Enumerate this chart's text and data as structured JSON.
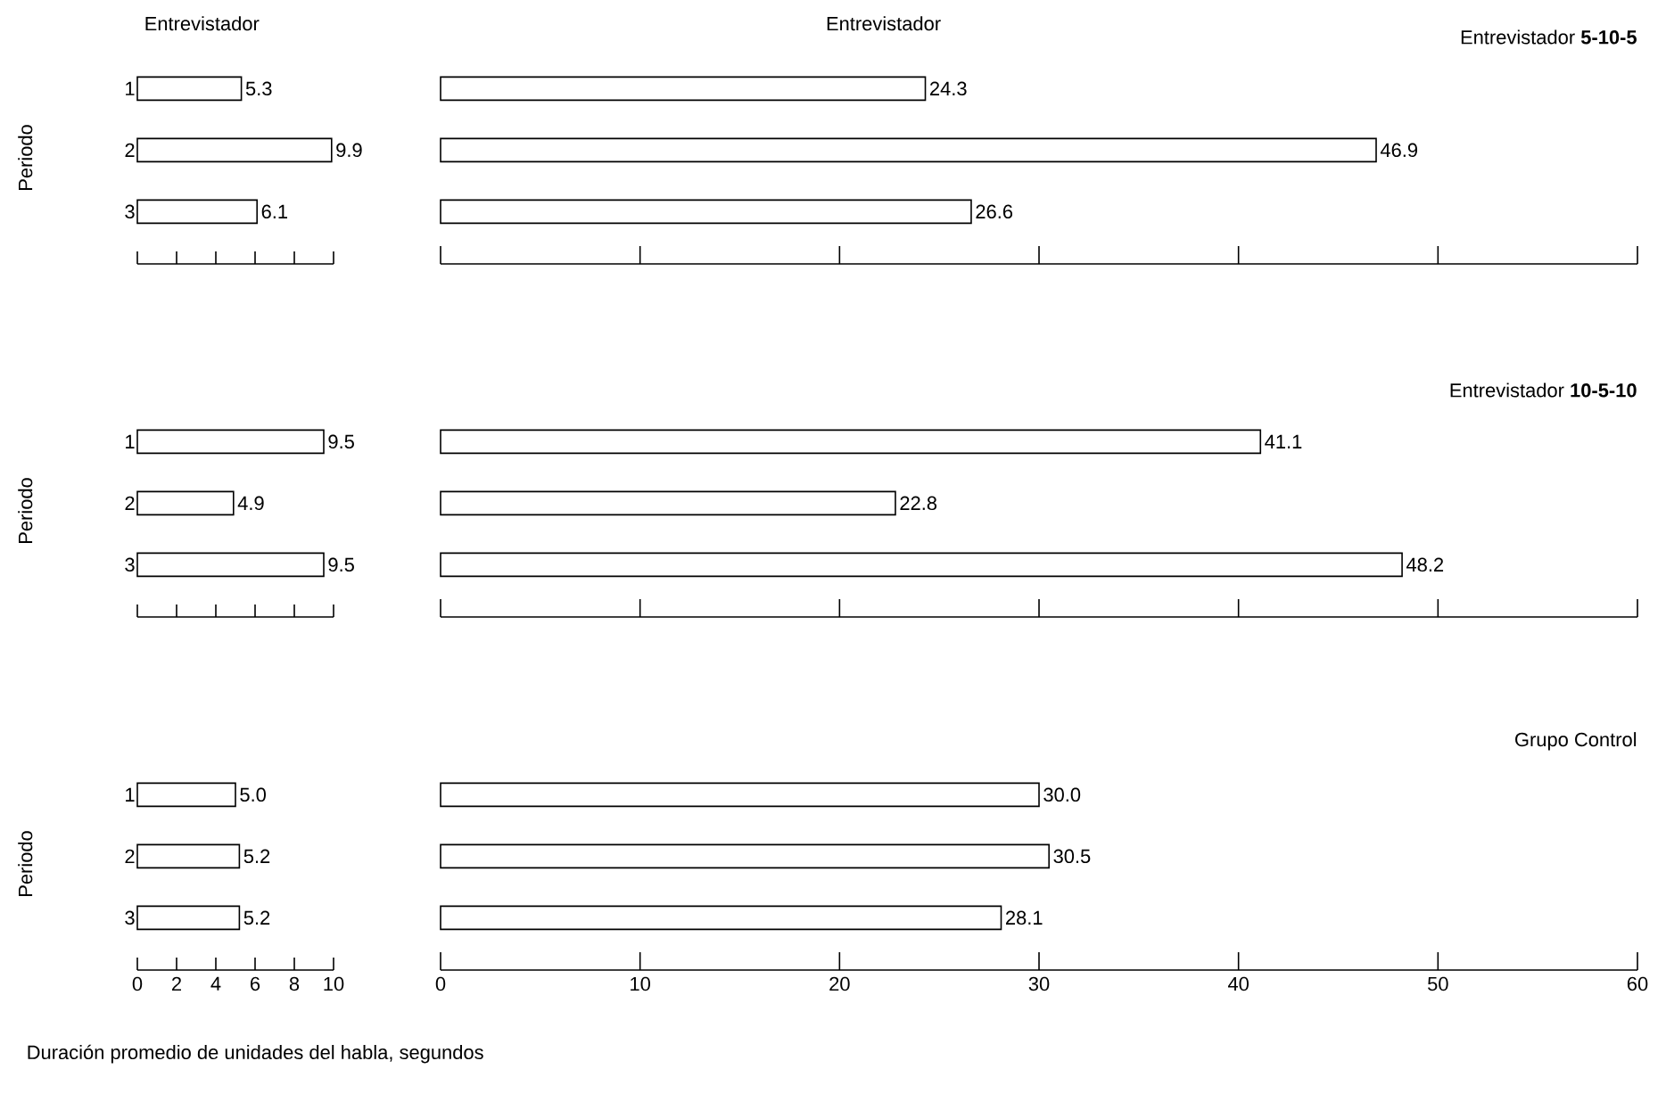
{
  "chart_data": [
    {
      "type": "bar",
      "orientation": "horizontal",
      "title": "Entrevistador",
      "ylabel": "Periodo",
      "categories": [
        "1",
        "2",
        "3"
      ],
      "values": [
        5.3,
        9.9,
        6.1
      ],
      "value_labels": [
        "5.3",
        "9.9",
        "6.1"
      ],
      "color": "#ffffff",
      "xlim": [
        0,
        10
      ],
      "xticks": [
        0,
        2,
        4,
        6,
        8,
        10
      ],
      "tick_labels": "y"
    },
    {
      "type": "bar",
      "orientation": "horizontal",
      "title": "Entrevistador",
      "annotations": [
        "Entrevistador **5-10-5**"
      ],
      "categories": [
        "1",
        "2",
        "3"
      ],
      "values": [
        24.3,
        46.9,
        26.6
      ],
      "value_labels": [
        "24.3",
        "46.9",
        "26.6"
      ],
      "color": "#ffffff",
      "xlim": [
        0,
        60
      ],
      "xticks": [
        0,
        10,
        20,
        30,
        40,
        50,
        60
      ],
      "tick_labels": false
    },
    {
      "type": "bar",
      "orientation": "horizontal",
      "ylabel": "Periodo",
      "categories": [
        "1",
        "2",
        "3"
      ],
      "values": [
        9.5,
        4.9,
        9.5
      ],
      "value_labels": [
        "9.5",
        "4.9",
        "9.5"
      ],
      "color": "#ffffff",
      "xlim": [
        0,
        10
      ],
      "xticks": [
        0,
        2,
        4,
        6,
        8,
        10
      ],
      "tick_labels": "y"
    },
    {
      "type": "bar",
      "orientation": "horizontal",
      "annotations": [
        "Entrevistador **10-5-10**"
      ],
      "categories": [
        "1",
        "2",
        "3"
      ],
      "values": [
        41.1,
        22.8,
        48.2
      ],
      "value_labels": [
        "41.1",
        "22.8",
        "48.2"
      ],
      "color": "#ffffff",
      "xlim": [
        0,
        60
      ],
      "xticks": [
        0,
        10,
        20,
        30,
        40,
        50,
        60
      ],
      "tick_labels": false
    },
    {
      "type": "bar",
      "orientation": "horizontal",
      "ylabel": "Periodo",
      "xlabel": "Duración promedio de unidades del habla, segundos",
      "categories": [
        "1",
        "2",
        "3"
      ],
      "values": [
        5.0,
        5.2,
        5.2
      ],
      "value_labels": [
        "5.0",
        "5.2",
        "5.2"
      ],
      "color": "#ffffff",
      "xlim": [
        0,
        10
      ],
      "xticks": [
        0,
        2,
        4,
        6,
        8,
        10
      ]
    },
    {
      "type": "bar",
      "orientation": "horizontal",
      "annotations": [
        "Grupo Control"
      ],
      "categories": [
        "1",
        "2",
        "3"
      ],
      "values": [
        30.0,
        30.5,
        28.1
      ],
      "value_labels": [
        "30.0",
        "30.5",
        "28.1"
      ],
      "color": "#ffffff",
      "xlim": [
        0,
        60
      ],
      "xticks": [
        0,
        10,
        20,
        30,
        40,
        50,
        60
      ],
      "tick_labels": "x"
    }
  ]
}
